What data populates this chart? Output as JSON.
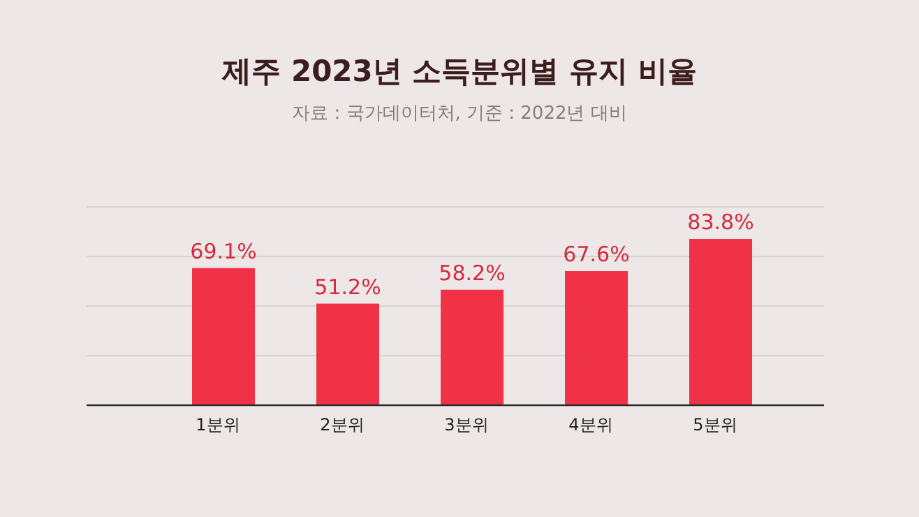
{
  "chart_data": {
    "type": "bar",
    "title": "제주 2023년 소득분위별 유지 비율",
    "subtitle": "자료 : 국가데이터처, 기준 : 2022년 대비",
    "categories": [
      "1분위",
      "2분위",
      "3분위",
      "4분위",
      "5분위"
    ],
    "values": [
      69.1,
      51.2,
      58.2,
      67.6,
      83.8
    ],
    "value_labels": [
      "69.1%",
      "51.2%",
      "58.2%",
      "67.6%",
      "83.8%"
    ],
    "color": "#f03246",
    "ylim": [
      0,
      100
    ],
    "yticks": [
      {
        "value": 0,
        "label": null
      },
      {
        "value": 25,
        "label": null
      },
      {
        "value": 50,
        "label": null
      },
      {
        "value": 75,
        "label": null
      },
      {
        "value": 100,
        "label": null
      }
    ],
    "grid": "y",
    "tick_labels": "x"
  }
}
